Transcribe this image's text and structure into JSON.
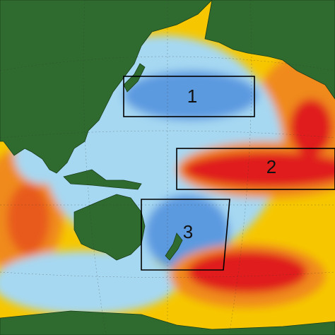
{
  "regions": [
    {
      "label": "1"
    },
    {
      "label": "2"
    },
    {
      "label": "3"
    }
  ]
}
